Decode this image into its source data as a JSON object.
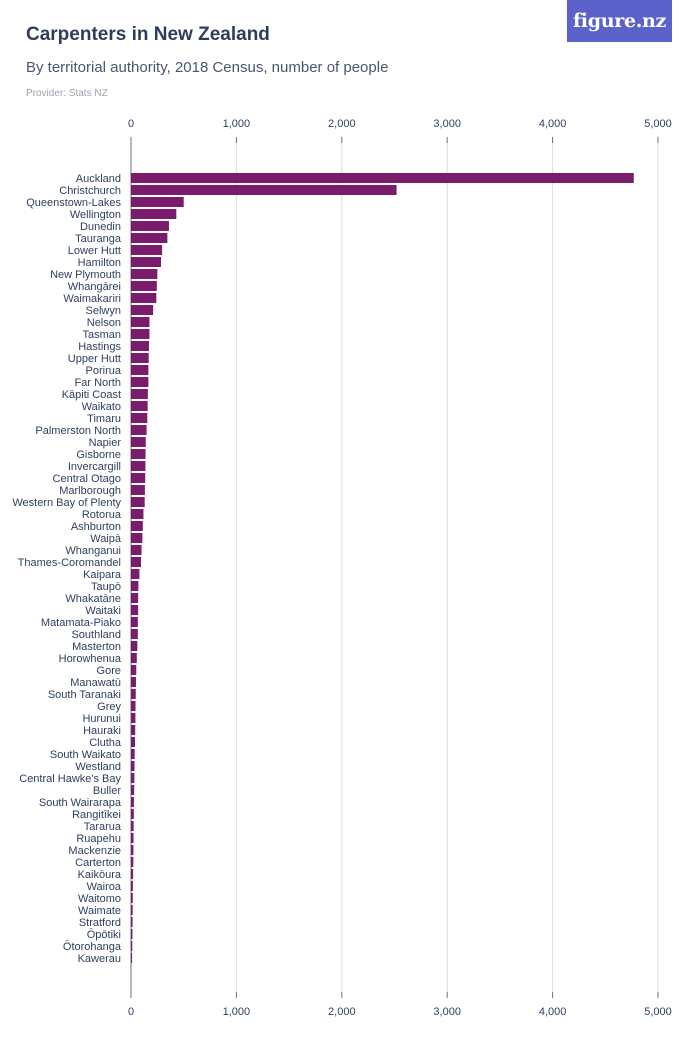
{
  "header": {
    "title": "Carpenters in New Zealand",
    "subtitle": "By territorial authority, 2018 Census, number of people",
    "provider": "Provider: Stats NZ",
    "logo": "figure.nz"
  },
  "colors": {
    "bar": "#7a1b6c",
    "grid": "#dcdde3",
    "axis": "#6d7282",
    "text": "#2d3f5e",
    "logo_bg": "#5b62c9"
  },
  "chart_data": {
    "type": "bar",
    "orientation": "horizontal",
    "xlim": [
      0,
      5000
    ],
    "ticks": [
      0,
      1000,
      2000,
      3000,
      4000,
      5000
    ],
    "tick_labels": [
      "0",
      "1,000",
      "2,000",
      "3,000",
      "4,000",
      "5,000"
    ],
    "grid": true,
    "categories": [
      "Auckland",
      "Christchurch",
      "Queenstown-Lakes",
      "Wellington",
      "Dunedin",
      "Tauranga",
      "Lower Hutt",
      "Hamilton",
      "New Plymouth",
      "Whangārei",
      "Waimakariri",
      "Selwyn",
      "Nelson",
      "Tasman",
      "Hastings",
      "Upper Hutt",
      "Porirua",
      "Far North",
      "Kāpiti Coast",
      "Waikato",
      "Timaru",
      "Palmerston North",
      "Napier",
      "Gisborne",
      "Invercargill",
      "Central Otago",
      "Marlborough",
      "Western Bay of Plenty",
      "Rotorua",
      "Ashburton",
      "Waipā",
      "Whanganui",
      "Thames-Coromandel",
      "Kaipara",
      "Taupō",
      "Whakatāne",
      "Waitaki",
      "Matamata-Piako",
      "Southland",
      "Masterton",
      "Horowhenua",
      "Gore",
      "Manawatū",
      "South Taranaki",
      "Grey",
      "Hurunui",
      "Hauraki",
      "Clutha",
      "South Waikato",
      "Westland",
      "Central Hawke's Bay",
      "Buller",
      "South Wairarapa",
      "Rangitīkei",
      "Tararua",
      "Ruapehu",
      "Mackenzie",
      "Carterton",
      "Kaikōura",
      "Wairoa",
      "Waitomo",
      "Waimate",
      "Stratford",
      "Ōpōtiki",
      "Ōtorohanga",
      "Kawerau"
    ],
    "values": [
      4770,
      2520,
      500,
      430,
      360,
      345,
      295,
      285,
      250,
      245,
      240,
      210,
      175,
      175,
      170,
      168,
      165,
      165,
      160,
      158,
      155,
      148,
      140,
      138,
      137,
      135,
      132,
      130,
      118,
      112,
      108,
      100,
      95,
      80,
      70,
      68,
      68,
      65,
      65,
      60,
      55,
      50,
      47,
      45,
      43,
      42,
      40,
      38,
      35,
      33,
      32,
      30,
      28,
      27,
      25,
      24,
      23,
      22,
      20,
      18,
      17,
      16,
      15,
      14,
      12,
      10
    ]
  }
}
